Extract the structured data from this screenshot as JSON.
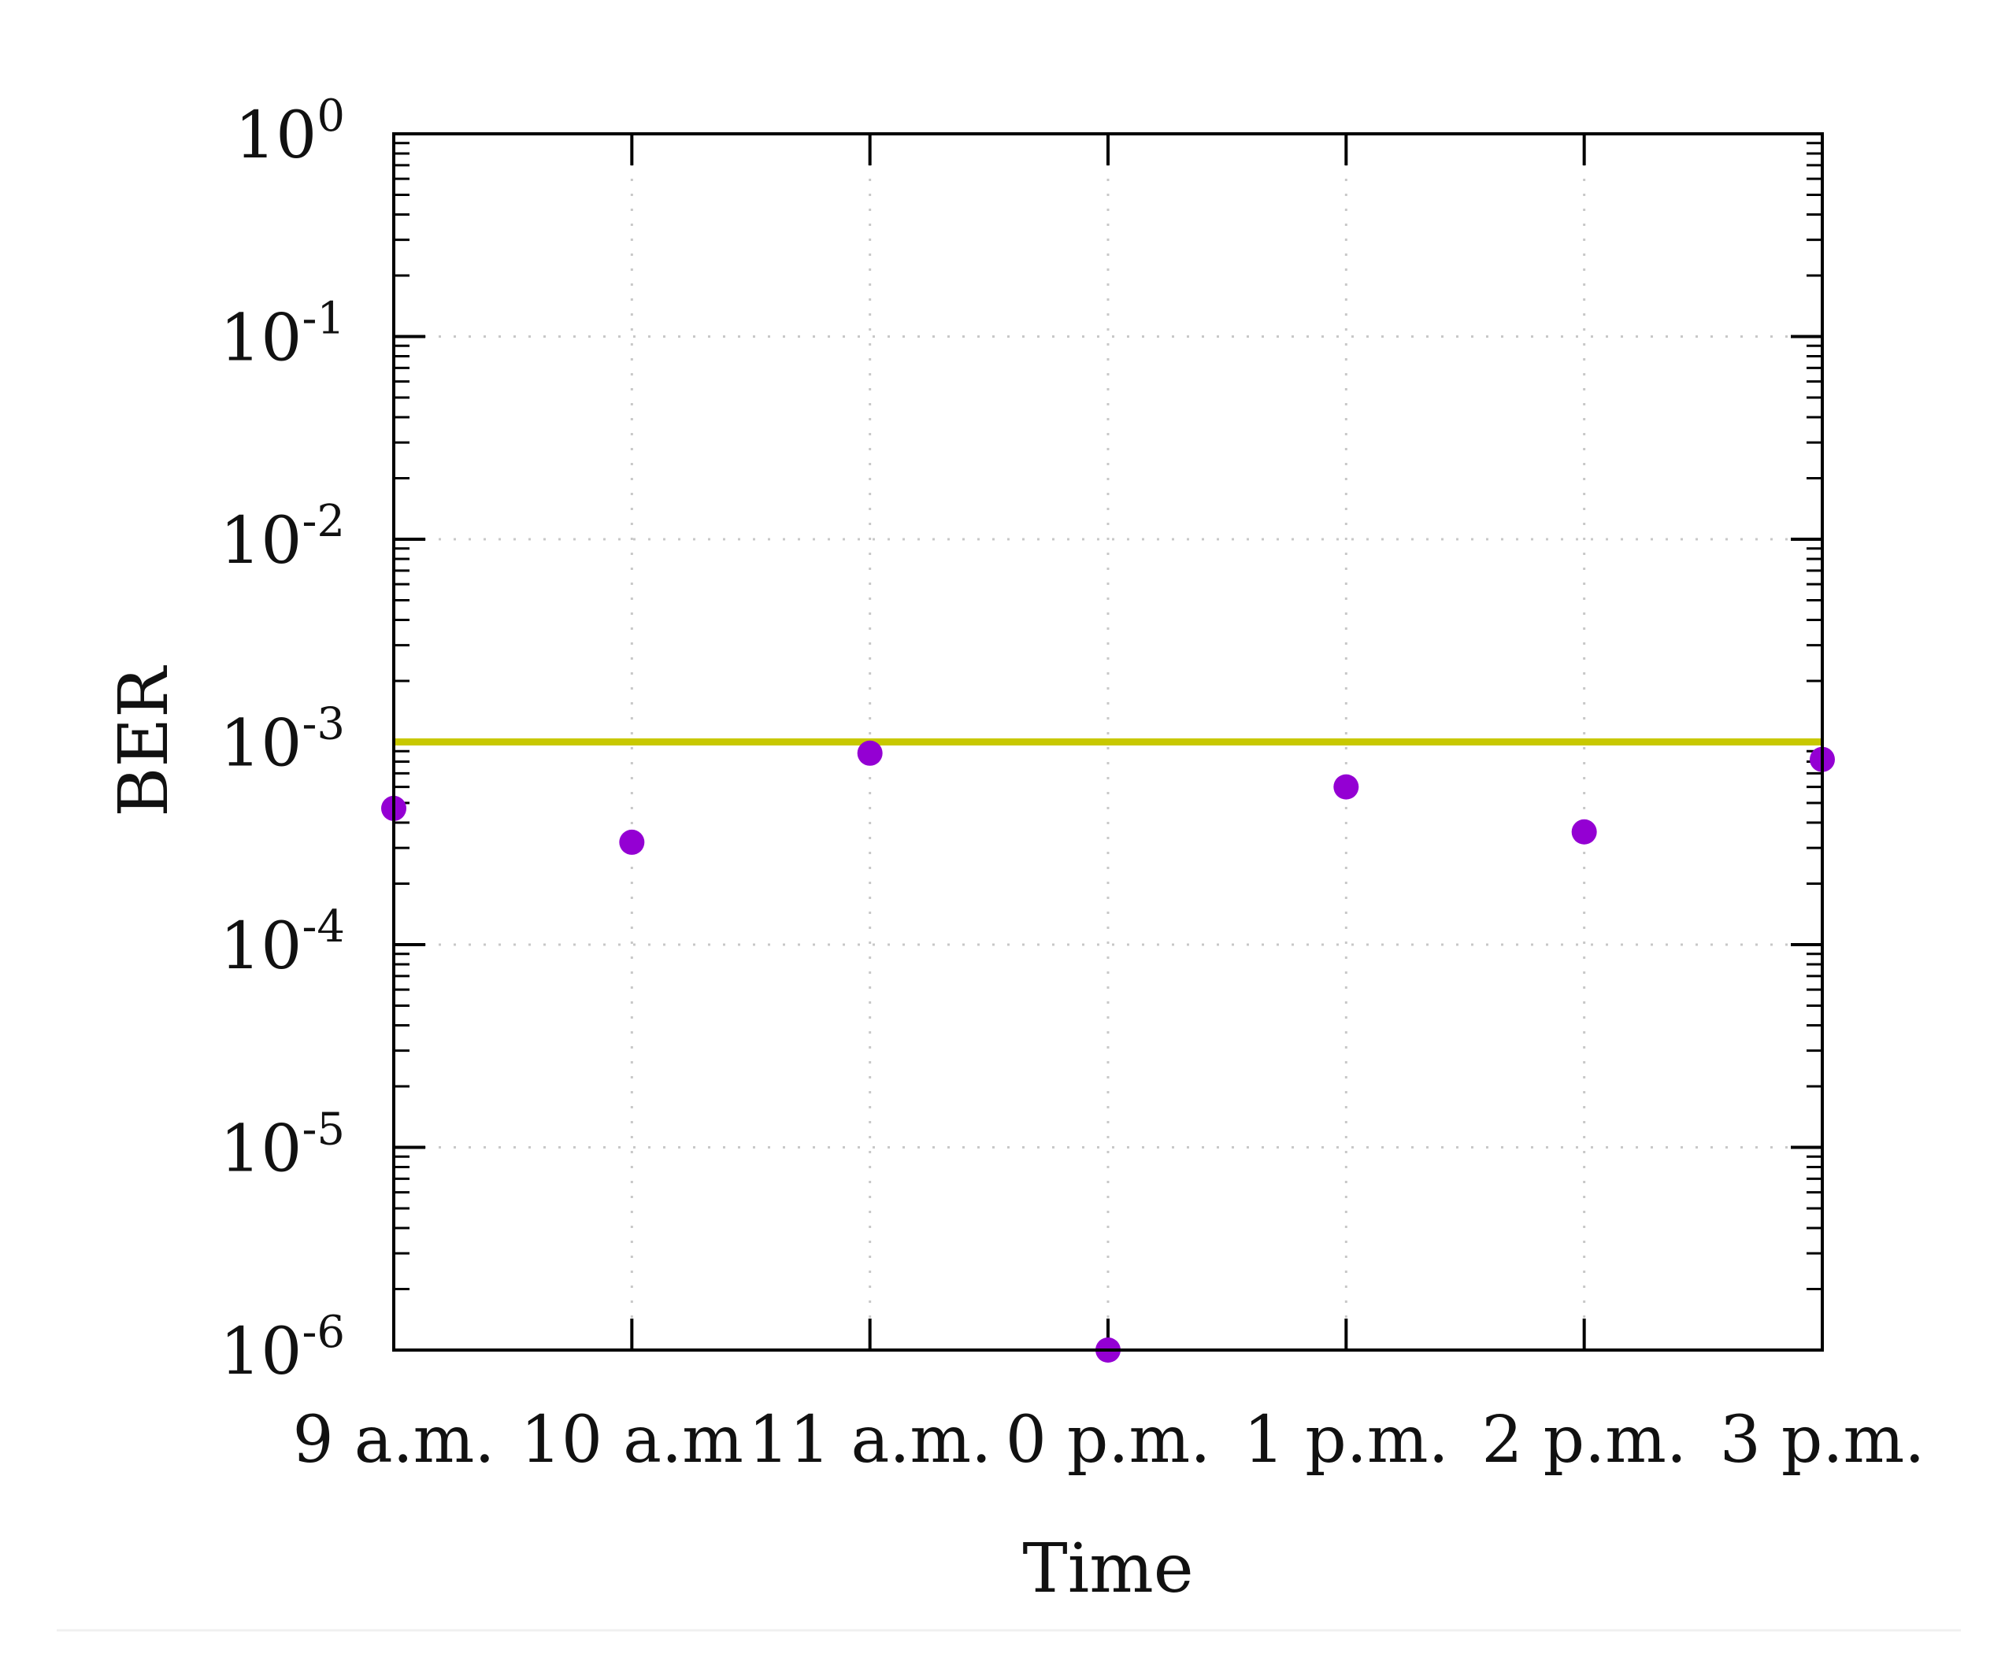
{
  "chart_data": {
    "type": "scatter",
    "title": "",
    "xlabel": "Time",
    "ylabel": "BER",
    "x_tick_labels": [
      "9 a.m.",
      "10 a.m",
      "11 a.m.",
      "0 p.m.",
      "1 p.m.",
      "2 p.m.",
      "3 p.m."
    ],
    "y_scale": "log",
    "ylim": [
      1e-06,
      1
    ],
    "y_ticks": [
      {
        "value": 1,
        "base": "10",
        "exp": "0"
      },
      {
        "value": 0.1,
        "base": "10",
        "exp": "-1"
      },
      {
        "value": 0.01,
        "base": "10",
        "exp": "-2"
      },
      {
        "value": 0.001,
        "base": "10",
        "exp": "-3"
      },
      {
        "value": 0.0001,
        "base": "10",
        "exp": "-4"
      },
      {
        "value": 1e-05,
        "base": "10",
        "exp": "-5"
      },
      {
        "value": 1e-06,
        "base": "10",
        "exp": "-6"
      }
    ],
    "grid": true,
    "series": [
      {
        "x": [
          "9 a.m.",
          "10 a.m",
          "11 a.m.",
          "0 p.m.",
          "1 p.m.",
          "2 p.m.",
          "3 p.m."
        ],
        "values": [
          0.00047,
          0.00032,
          0.00088,
          1e-06,
          0.0006,
          0.00036,
          0.00082
        ],
        "color": "#9400d3"
      }
    ],
    "reference_lines": [
      {
        "y": 0.001,
        "color": "#c8c800"
      }
    ]
  }
}
